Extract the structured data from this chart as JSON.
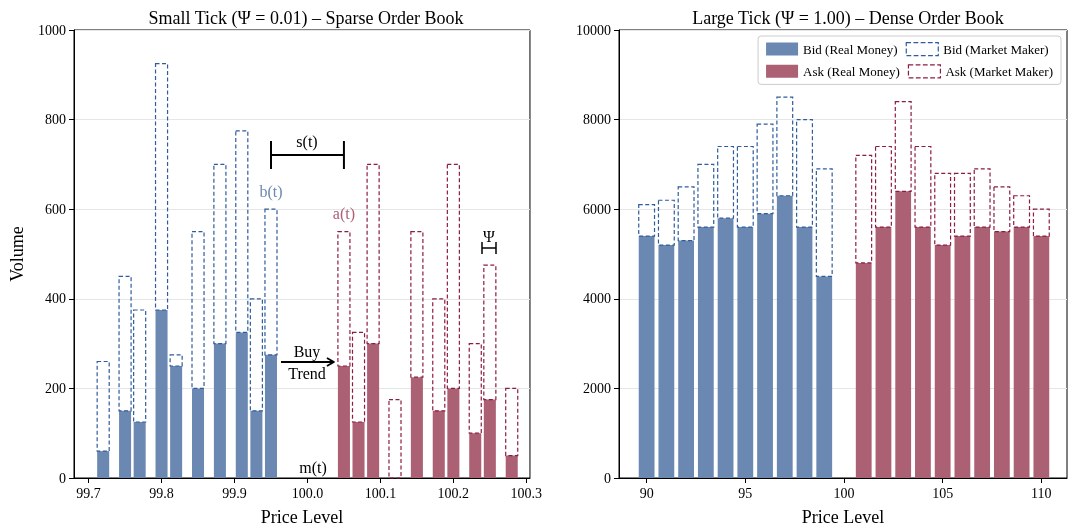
{
  "chart_data": [
    {
      "type": "bar",
      "title": "Small Tick (Ψ = 0.01) – Sparse Order Book",
      "xlabel": "Price Level",
      "ylabel": "Volume",
      "stacked": true,
      "grid": "y",
      "xlim": [
        99.68,
        100.305
      ],
      "xticks": [
        99.7,
        99.8,
        99.9,
        {
          "value": 100,
          "label": "100.0"
        },
        100.1,
        100.2,
        100.3
      ],
      "ylim": [
        0,
        1000
      ],
      "yticks": [
        0,
        200,
        400,
        600,
        800,
        1000
      ],
      "x": [
        99.72,
        99.75,
        99.77,
        99.8,
        99.82,
        99.85,
        99.88,
        99.91,
        99.93,
        99.95,
        100.05,
        100.07,
        100.09,
        100.12,
        100.15,
        100.18,
        100.2,
        100.23,
        100.25,
        100.28
      ],
      "series": [
        {
          "color": "#6a88b1",
          "values": [
            60,
            150,
            125,
            375,
            250,
            200,
            300,
            325,
            150,
            275,
            null,
            null,
            null,
            null,
            null,
            null,
            null,
            null,
            null,
            null
          ]
        },
        {
          "color": "#2e5c9c",
          "line_style": "dashed",
          "values": [
            200,
            300,
            250,
            550,
            25,
            350,
            400,
            450,
            250,
            325,
            null,
            null,
            null,
            null,
            null,
            null,
            null,
            null,
            null,
            null
          ]
        },
        {
          "color": "#ac6073",
          "values": [
            null,
            null,
            null,
            null,
            null,
            null,
            null,
            null,
            null,
            null,
            250,
            125,
            300,
            0,
            225,
            150,
            200,
            100,
            175,
            50
          ]
        },
        {
          "color": "#8c1c42",
          "line_style": "dashed",
          "values": [
            null,
            null,
            null,
            null,
            null,
            null,
            null,
            null,
            null,
            null,
            300,
            200,
            400,
            175,
            325,
            250,
            500,
            200,
            300,
            150
          ]
        }
      ],
      "annotations": [
        "s(t)",
        {
          "text": "b(t)",
          "x": 99.95,
          "y": 600
        },
        {
          "text": "a(t)",
          "x": 100.05,
          "y": 550
        },
        "Buy\nTrend",
        "m(t)",
        "Ψ"
      ]
    },
    {
      "type": "bar",
      "title": "Large Tick (Ψ = 1.00) – Dense Order Book",
      "xlabel": "Price Level",
      "stacked": true,
      "grid": "y",
      "legend": "top right",
      "xlim": [
        88.6,
        111.3
      ],
      "xticks": [
        90,
        95,
        100,
        105,
        110
      ],
      "ylim": [
        0,
        10000
      ],
      "yticks": [
        0,
        2000,
        4000,
        6000,
        8000,
        10000
      ],
      "x": [
        90,
        91,
        92,
        93,
        94,
        95,
        96,
        97,
        98,
        99,
        101,
        102,
        103,
        104,
        105,
        106,
        107,
        108,
        109,
        110
      ],
      "series": [
        {
          "name": "Bid (Real Money)",
          "color": "#6a88b1",
          "values": [
            5400,
            5200,
            5300,
            5600,
            5800,
            5600,
            5900,
            6300,
            5600,
            4500,
            null,
            null,
            null,
            null,
            null,
            null,
            null,
            null,
            null,
            null
          ]
        },
        {
          "name": "Bid (Market Maker)",
          "color": "#2e5c9c",
          "line_style": "dashed",
          "values": [
            700,
            1000,
            1200,
            1400,
            1600,
            1800,
            2000,
            2200,
            2400,
            2400,
            null,
            null,
            null,
            null,
            null,
            null,
            null,
            null,
            null,
            null
          ]
        },
        {
          "name": "Ask (Real Money)",
          "color": "#ac6073",
          "values": [
            null,
            null,
            null,
            null,
            null,
            null,
            null,
            null,
            null,
            null,
            4800,
            5600,
            6400,
            5600,
            5200,
            5400,
            5600,
            5500,
            5600,
            5400
          ]
        },
        {
          "name": "Ask (Market Maker)",
          "color": "#8c1c42",
          "line_style": "dashed",
          "values": [
            null,
            null,
            null,
            null,
            null,
            null,
            null,
            null,
            null,
            null,
            2400,
            1800,
            2000,
            1800,
            1600,
            1400,
            1300,
            1000,
            700,
            600
          ]
        }
      ]
    }
  ]
}
